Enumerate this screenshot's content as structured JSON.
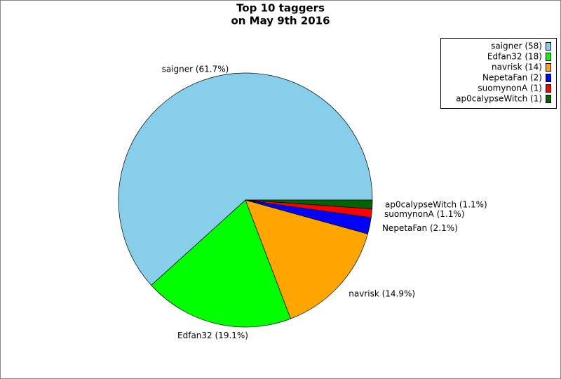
{
  "chart_data": {
    "type": "pie",
    "title": "Top 10 taggers",
    "subtitle": "on May 9th 2016",
    "categories": [
      "saigner (58)",
      "Edfan32 (18)",
      "navrisk (14)",
      "NepetaFan (2)",
      "suomynonA (1)",
      "ap0calypseWitch (1)"
    ],
    "values": [
      61.7,
      19.1,
      14.9,
      2.1,
      1.1,
      1.1
    ],
    "value_labels": [
      "saigner (61.7%)",
      "Edfan32 (19.1%)",
      "navrisk (14.9%)",
      "NepetaFan (2.1%)",
      "suomynonA (1.1%)",
      "ap0calypseWitch (1.1%)"
    ],
    "colors": [
      "#87ceeb",
      "#00ff00",
      "#ffa500",
      "#0000ff",
      "#ff0000",
      "#006400"
    ],
    "legend": "upper right"
  }
}
